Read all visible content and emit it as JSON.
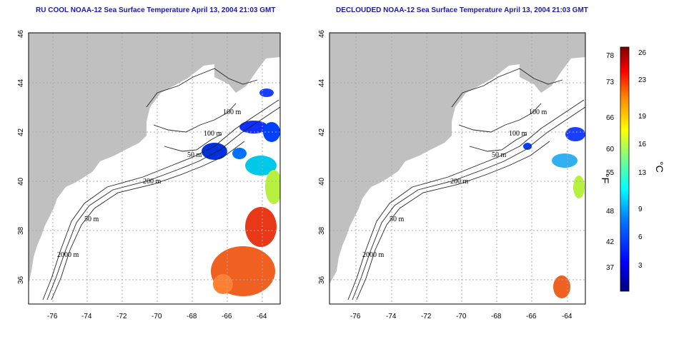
{
  "titles": {
    "left": "RU COOL NOAA-12 Sea Surface Temperature April 13, 2004 21:03 GMT",
    "right": "DECLOUDED NOAA-12 Sea Surface Temperature April 13, 2004 21:03 GMT"
  },
  "axes": {
    "lon_ticks": [
      "-76",
      "-74",
      "-72",
      "-70",
      "-68",
      "-66",
      "-64"
    ],
    "lat_ticks": [
      "36",
      "38",
      "40",
      "42",
      "44",
      "46"
    ],
    "lon_range": [
      -77,
      -63
    ],
    "lat_range": [
      35,
      46
    ],
    "grid": "dotted"
  },
  "contours": {
    "left": [
      "100 m",
      "100 m",
      "50 m",
      "200 m",
      "50 m",
      "2000 m"
    ],
    "right": [
      "100 m",
      "100 m",
      "50 m",
      "200 m",
      "50 m",
      "2000 m"
    ]
  },
  "colorbar": {
    "unit_f": "°F",
    "unit_c": "°C",
    "fahrenheit_ticks": [
      "78",
      "73",
      "66",
      "60",
      "55",
      "48",
      "42",
      "37"
    ],
    "celsius_ticks": [
      "26",
      "23",
      "19",
      "16",
      "13",
      "9",
      "6",
      "3"
    ],
    "colors": [
      "#00007f",
      "#0000ff",
      "#0080ff",
      "#00ffff",
      "#80ff80",
      "#ffff00",
      "#ff8000",
      "#ff0000",
      "#7f0000"
    ]
  },
  "colors": {
    "land": "#c0c0c0",
    "ocean": "#ffffff",
    "title": "#1a1aa6"
  }
}
